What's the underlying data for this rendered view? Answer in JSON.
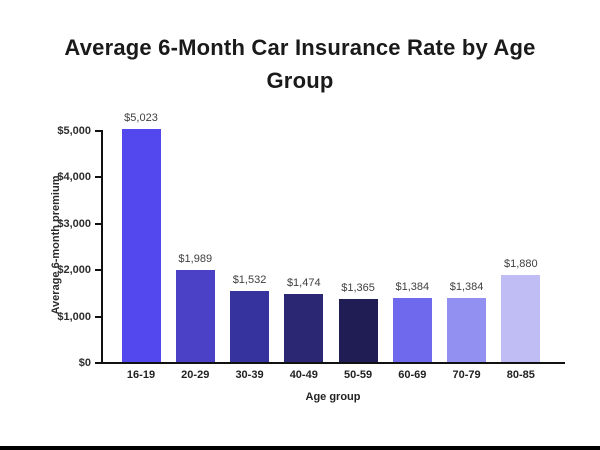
{
  "chart_data": {
    "type": "bar",
    "title": "Average 6-Month Car Insurance Rate by Age Group",
    "xlabel": "Age group",
    "ylabel": "Average 6-month premium",
    "categories": [
      "16-19",
      "20-29",
      "30-39",
      "40-49",
      "50-59",
      "60-69",
      "70-79",
      "80-85"
    ],
    "values": [
      5023,
      1989,
      1532,
      1474,
      1365,
      1384,
      1384,
      1880
    ],
    "value_labels": [
      "$5,023",
      "$1,989",
      "$1,532",
      "$1,474",
      "$1,365",
      "$1,384",
      "$1,384",
      "$1,880"
    ],
    "bar_colors": [
      "#5348ee",
      "#4a41c6",
      "#37339e",
      "#2b2773",
      "#201c54",
      "#6f69ee",
      "#9290f0",
      "#bfbdf4"
    ],
    "ylim": [
      0,
      5000
    ],
    "y_ticks": [
      {
        "value": 0,
        "label": "$0"
      },
      {
        "value": 1000,
        "label": "$1,000"
      },
      {
        "value": 2000,
        "label": "$2,000"
      },
      {
        "value": 3000,
        "label": "$3,000"
      },
      {
        "value": 4000,
        "label": "$4,000"
      },
      {
        "value": 5000,
        "label": "$5,000"
      }
    ],
    "grid": false,
    "legend": "none",
    "axis_color": "#111111",
    "background": "#ffffff"
  }
}
